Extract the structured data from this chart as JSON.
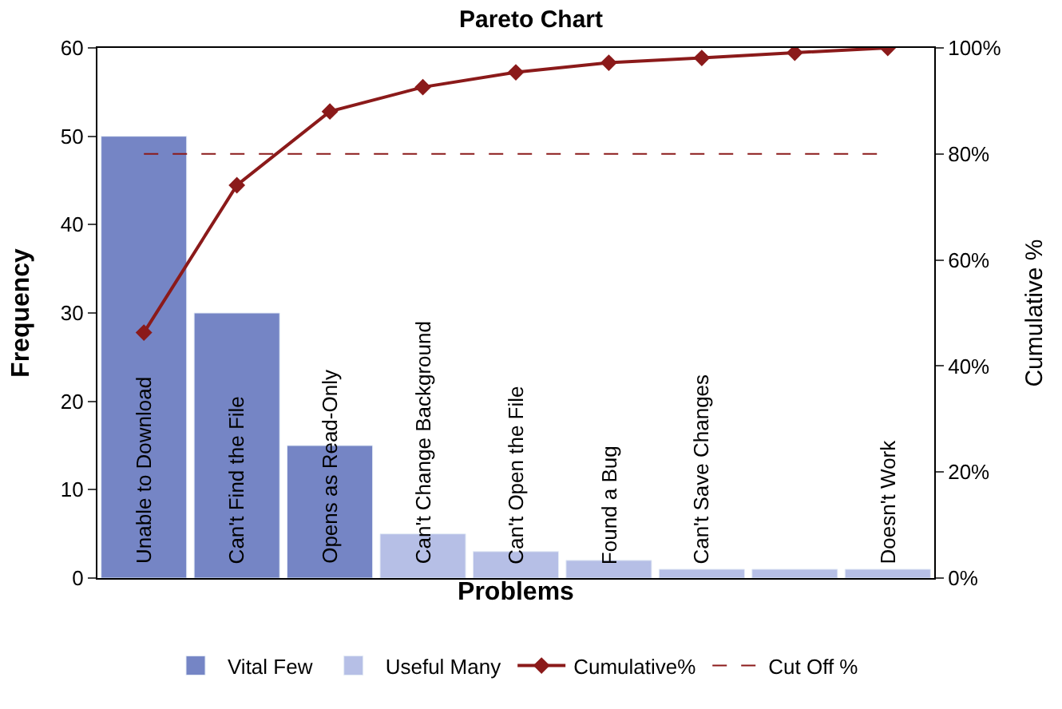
{
  "chart_data": {
    "type": "bar",
    "title": "Pareto Chart",
    "xlabel": "Problems",
    "ylabel": "Frequency",
    "y2label": "Cumulative %",
    "categories": [
      "Unable to Download",
      "Can't Find the File",
      "Opens as Read-Only",
      "Can't Change Background",
      "Can't Open the File",
      "Found a Bug",
      "Can't Save Changes",
      null,
      "Doesn't Work"
    ],
    "series": [
      {
        "name": "Vital Few",
        "color": "#7585c5",
        "values": [
          50,
          30,
          15,
          null,
          null,
          null,
          null,
          null,
          null
        ]
      },
      {
        "name": "Useful Many",
        "color": "#b6bfe6",
        "values": [
          null,
          null,
          null,
          5,
          3,
          2,
          1,
          1,
          1
        ]
      },
      {
        "name": "Cumulative%",
        "type": "line",
        "axis": "y2",
        "color": "#8b1a1a",
        "marker": "diamond",
        "values": [
          46.3,
          74.1,
          88.0,
          92.6,
          95.4,
          97.2,
          98.1,
          99.1,
          100
        ]
      }
    ],
    "ref_lines": [
      {
        "axis": "y2",
        "value": 80,
        "label": "Cut Off %",
        "color": "#8b1a1a",
        "line_style": "dashed"
      }
    ],
    "ylim": [
      0,
      60
    ],
    "yticks": [
      0,
      10,
      20,
      30,
      40,
      50,
      60
    ],
    "y2lim": [
      0,
      100
    ],
    "y2ticks": [
      {
        "value": 0,
        "label": "0%"
      },
      {
        "value": 20,
        "label": "20%"
      },
      {
        "value": 40,
        "label": "40%"
      },
      {
        "value": 60,
        "label": "60%"
      },
      {
        "value": 80,
        "label": "80%"
      },
      {
        "value": 100,
        "label": "100%"
      }
    ],
    "legend": "bottom"
  }
}
